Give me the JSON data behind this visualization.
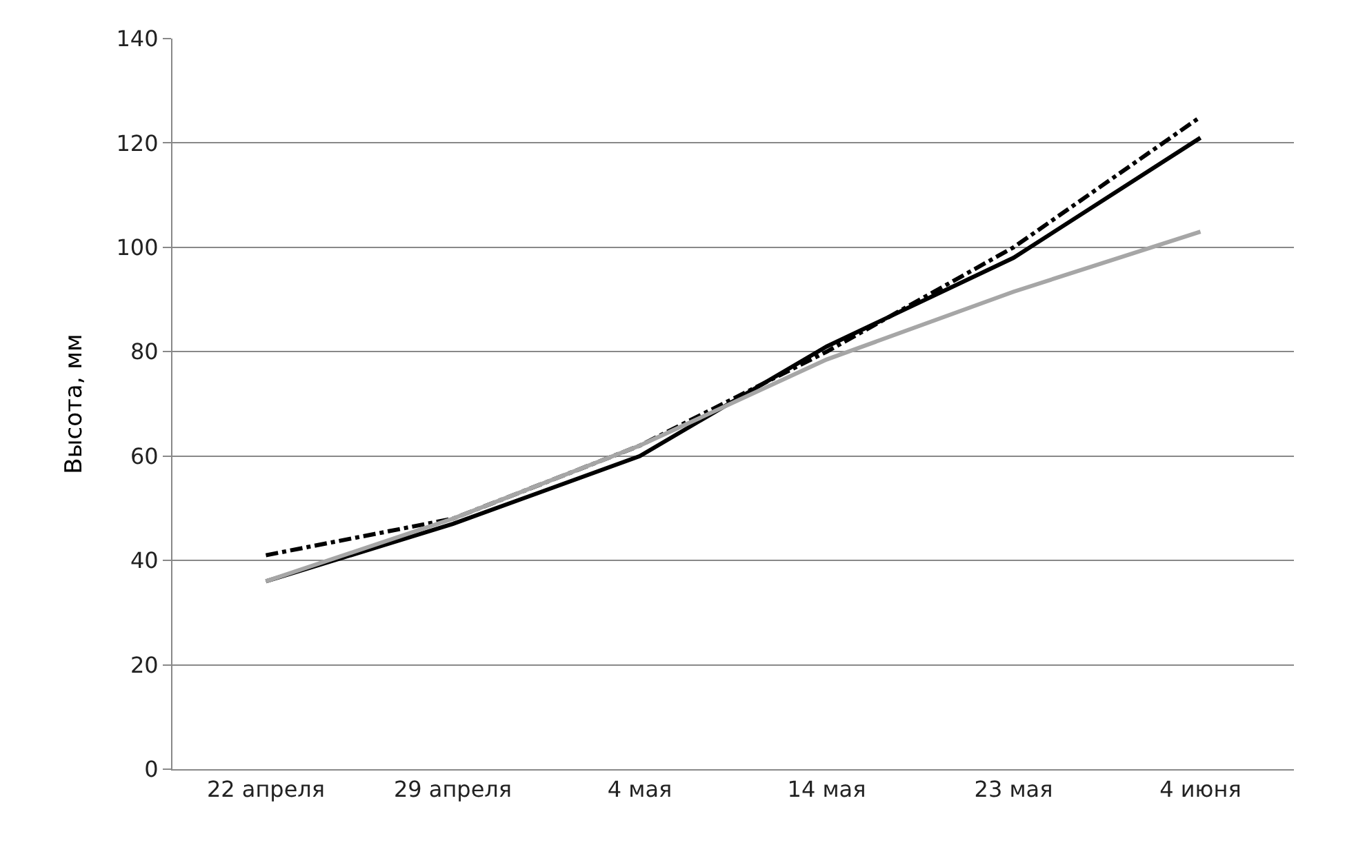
{
  "chart_data": {
    "type": "line",
    "ylabel": "Высота, мм",
    "categories": [
      "22 апреля",
      "29 апреля",
      "4 мая",
      "14 мая",
      "23 мая",
      "4 июня"
    ],
    "series": [
      {
        "color": "#000000",
        "line_style": "dashed",
        "values": [
          41,
          48,
          62,
          80,
          100,
          125
        ]
      },
      {
        "color": "#000000",
        "line_style": "solid",
        "values": [
          36,
          47,
          60,
          81,
          98,
          121
        ]
      },
      {
        "color": "#a6a6a6",
        "line_style": "solid",
        "values": [
          36,
          48,
          62,
          78.5,
          91.5,
          103
        ]
      }
    ],
    "ylim": [
      0,
      140
    ],
    "yticks": [
      0,
      20,
      40,
      60,
      80,
      100,
      120,
      140
    ],
    "grid": "y",
    "marker": "none"
  }
}
